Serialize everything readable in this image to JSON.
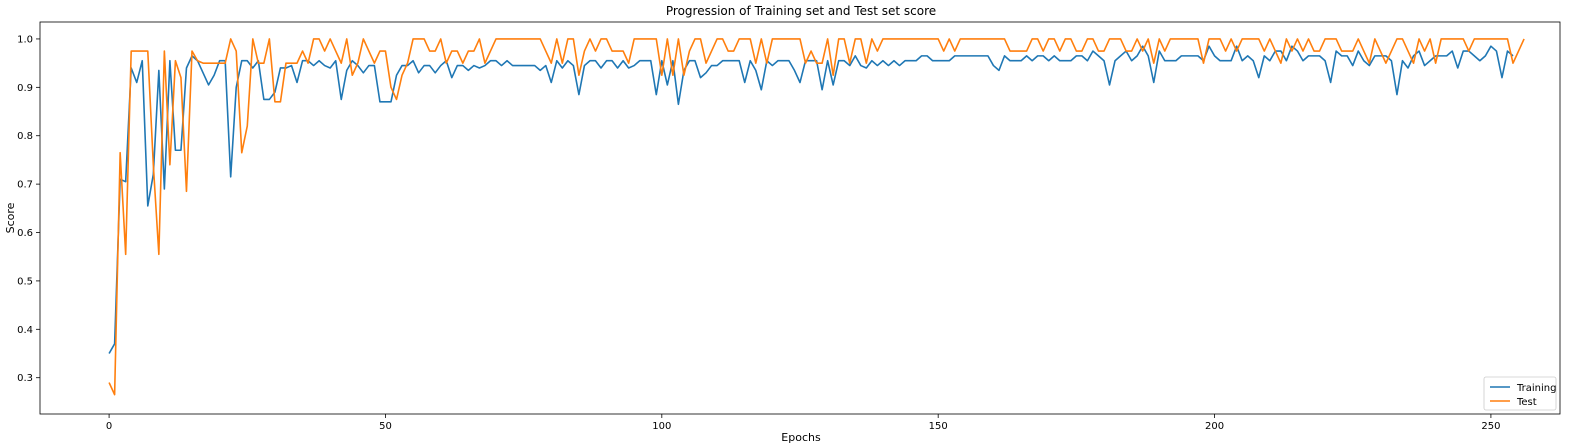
{
  "chart_data": {
    "type": "line",
    "title": "Progression of Training set and Test set score",
    "xlabel": "Epochs",
    "ylabel": "Score",
    "xlim": [
      -12.5,
      262.5
    ],
    "ylim": [
      0.225,
      1.035
    ],
    "xticks": [
      0,
      50,
      100,
      150,
      200,
      250
    ],
    "yticks": [
      0.3,
      0.4,
      0.5,
      0.6,
      0.7,
      0.8,
      0.9,
      1.0
    ],
    "xtick_labels": [
      "0",
      "50",
      "100",
      "150",
      "200",
      "250"
    ],
    "ytick_labels": [
      "0.3",
      "0.4",
      "0.5",
      "0.6",
      "0.7",
      "0.8",
      "0.9",
      "1.0"
    ],
    "grid": false,
    "legend_position": "lower-right",
    "series": [
      {
        "name": "Training",
        "color": "#1f77b4",
        "values": [
          0.35,
          0.37,
          0.71,
          0.705,
          0.94,
          0.91,
          0.955,
          0.655,
          0.72,
          0.935,
          0.69,
          0.955,
          0.77,
          0.77,
          0.94,
          0.965,
          0.955,
          0.93,
          0.905,
          0.925,
          0.955,
          0.955,
          0.715,
          0.9,
          0.955,
          0.955,
          0.94,
          0.955,
          0.875,
          0.875,
          0.89,
          0.94,
          0.94,
          0.945,
          0.91,
          0.955,
          0.955,
          0.945,
          0.955,
          0.945,
          0.94,
          0.955,
          0.875,
          0.935,
          0.955,
          0.945,
          0.93,
          0.945,
          0.945,
          0.87,
          0.87,
          0.87,
          0.925,
          0.945,
          0.945,
          0.955,
          0.93,
          0.945,
          0.945,
          0.93,
          0.945,
          0.955,
          0.92,
          0.945,
          0.945,
          0.935,
          0.945,
          0.94,
          0.945,
          0.955,
          0.955,
          0.945,
          0.955,
          0.945,
          0.945,
          0.945,
          0.945,
          0.945,
          0.935,
          0.945,
          0.91,
          0.955,
          0.94,
          0.955,
          0.945,
          0.885,
          0.945,
          0.955,
          0.955,
          0.94,
          0.955,
          0.955,
          0.94,
          0.955,
          0.94,
          0.945,
          0.955,
          0.955,
          0.955,
          0.885,
          0.955,
          0.905,
          0.955,
          0.865,
          0.935,
          0.955,
          0.955,
          0.92,
          0.93,
          0.945,
          0.945,
          0.955,
          0.955,
          0.955,
          0.955,
          0.91,
          0.955,
          0.935,
          0.895,
          0.955,
          0.945,
          0.955,
          0.955,
          0.955,
          0.935,
          0.91,
          0.955,
          0.955,
          0.955,
          0.895,
          0.955,
          0.905,
          0.955,
          0.955,
          0.945,
          0.965,
          0.945,
          0.94,
          0.955,
          0.945,
          0.955,
          0.945,
          0.955,
          0.945,
          0.955,
          0.955,
          0.955,
          0.965,
          0.965,
          0.955,
          0.955,
          0.955,
          0.955,
          0.965,
          0.965,
          0.965,
          0.965,
          0.965,
          0.965,
          0.965,
          0.945,
          0.935,
          0.965,
          0.955,
          0.955,
          0.955,
          0.965,
          0.955,
          0.965,
          0.965,
          0.955,
          0.965,
          0.955,
          0.955,
          0.955,
          0.965,
          0.965,
          0.955,
          0.975,
          0.965,
          0.955,
          0.905,
          0.955,
          0.965,
          0.975,
          0.955,
          0.965,
          0.985,
          0.965,
          0.91,
          0.975,
          0.955,
          0.955,
          0.955,
          0.965,
          0.965,
          0.965,
          0.965,
          0.955,
          0.985,
          0.965,
          0.955,
          0.955,
          0.955,
          0.985,
          0.955,
          0.965,
          0.955,
          0.92,
          0.965,
          0.955,
          0.975,
          0.975,
          0.955,
          0.985,
          0.975,
          0.955,
          0.965,
          0.965,
          0.965,
          0.955,
          0.91,
          0.975,
          0.965,
          0.965,
          0.945,
          0.975,
          0.955,
          0.945,
          0.965,
          0.965,
          0.965,
          0.955,
          0.885,
          0.955,
          0.94,
          0.965,
          0.975,
          0.945,
          0.955,
          0.965,
          0.965,
          0.965,
          0.975,
          0.94,
          0.975,
          0.975,
          0.965,
          0.955,
          0.965,
          0.985,
          0.975,
          0.92,
          0.975,
          0.965
        ]
      },
      {
        "name": "Test",
        "color": "#ff7f0e",
        "values": [
          0.29,
          0.265,
          0.765,
          0.555,
          0.975,
          0.975,
          0.975,
          0.975,
          0.74,
          0.555,
          0.975,
          0.74,
          0.955,
          0.92,
          0.685,
          0.975,
          0.955,
          0.95,
          0.95,
          0.95,
          0.95,
          0.95,
          1.0,
          0.975,
          0.765,
          0.82,
          1.0,
          0.95,
          0.95,
          1.0,
          0.87,
          0.87,
          0.95,
          0.95,
          0.95,
          0.975,
          0.95,
          1.0,
          1.0,
          0.975,
          1.0,
          0.975,
          0.95,
          1.0,
          0.925,
          0.95,
          1.0,
          0.975,
          0.95,
          0.975,
          0.975,
          0.9,
          0.875,
          0.925,
          0.95,
          1.0,
          1.0,
          1.0,
          0.975,
          0.975,
          1.0,
          0.95,
          0.975,
          0.975,
          0.95,
          0.975,
          0.975,
          1.0,
          0.95,
          0.975,
          1.0,
          1.0,
          1.0,
          1.0,
          1.0,
          1.0,
          1.0,
          1.0,
          1.0,
          0.975,
          0.95,
          1.0,
          0.95,
          1.0,
          1.0,
          0.925,
          0.975,
          1.0,
          0.975,
          1.0,
          1.0,
          0.975,
          0.975,
          0.975,
          0.95,
          1.0,
          1.0,
          1.0,
          1.0,
          1.0,
          0.925,
          1.0,
          0.925,
          1.0,
          0.925,
          0.975,
          1.0,
          1.0,
          0.95,
          0.975,
          1.0,
          1.0,
          0.975,
          0.975,
          1.0,
          1.0,
          1.0,
          0.95,
          1.0,
          0.95,
          1.0,
          1.0,
          1.0,
          1.0,
          1.0,
          1.0,
          0.95,
          0.975,
          0.95,
          0.95,
          1.0,
          0.925,
          1.0,
          1.0,
          0.95,
          1.0,
          1.0,
          0.95,
          1.0,
          0.975,
          1.0,
          1.0,
          1.0,
          1.0,
          1.0,
          1.0,
          1.0,
          1.0,
          1.0,
          1.0,
          1.0,
          0.975,
          1.0,
          0.975,
          1.0,
          1.0,
          1.0,
          1.0,
          1.0,
          1.0,
          1.0,
          1.0,
          1.0,
          0.975,
          0.975,
          0.975,
          0.975,
          1.0,
          1.0,
          0.975,
          1.0,
          1.0,
          0.975,
          1.0,
          1.0,
          0.975,
          0.975,
          1.0,
          1.0,
          0.975,
          0.975,
          1.0,
          1.0,
          1.0,
          0.975,
          0.975,
          1.0,
          0.975,
          1.0,
          0.95,
          1.0,
          0.975,
          1.0,
          1.0,
          1.0,
          1.0,
          1.0,
          1.0,
          0.95,
          1.0,
          1.0,
          1.0,
          0.975,
          1.0,
          0.975,
          1.0,
          1.0,
          1.0,
          1.0,
          0.975,
          1.0,
          0.975,
          0.95,
          1.0,
          0.975,
          1.0,
          0.975,
          1.0,
          0.975,
          0.975,
          1.0,
          1.0,
          1.0,
          0.975,
          0.975,
          0.975,
          1.0,
          0.975,
          0.95,
          1.0,
          0.975,
          0.95,
          0.975,
          1.0,
          1.0,
          0.975,
          0.95,
          1.0,
          0.975,
          1.0,
          0.95,
          1.0,
          1.0,
          1.0,
          1.0,
          1.0,
          0.975,
          1.0,
          1.0,
          1.0,
          1.0,
          1.0,
          1.0,
          1.0,
          0.95,
          0.975,
          1.0
        ]
      }
    ]
  }
}
